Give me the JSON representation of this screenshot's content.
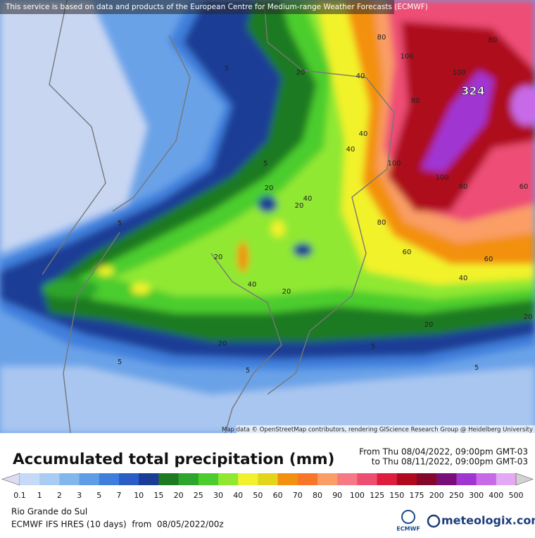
{
  "banner": "This service is based on data and products of the European Centre for Medium-range Weather Forecasts (ECMWF)",
  "attribution": "Map data © OpenStreetMap contributors, rendering GIScience Research Group @ Heidelberg University",
  "map_labels": [
    5,
    20,
    40,
    80,
    80,
    100,
    100,
    324,
    80,
    40,
    40,
    5,
    100,
    100,
    20,
    40,
    80,
    60,
    20,
    5,
    80,
    60,
    20,
    60,
    40,
    20,
    40,
    20,
    20,
    5,
    20,
    5,
    5,
    5
  ],
  "title": "Accumulated total precipitation (mm)",
  "period": [
    "From Thu 08/04/2022, 09:00pm GMT-03",
    "to Thu 08/11/2022, 09:00pm GMT-03"
  ],
  "colorbar": {
    "levels": [
      0.1,
      1,
      2,
      3,
      5,
      7,
      10,
      15,
      20,
      25,
      30,
      40,
      50,
      60,
      70,
      80,
      90,
      100,
      125,
      150,
      175,
      200,
      250,
      300,
      400,
      500
    ],
    "colors": [
      "#dcdcf2",
      "#c4daf6",
      "#a8ccf4",
      "#84b6ee",
      "#5f9de6",
      "#3f7fdc",
      "#2a5ec4",
      "#1b3c96",
      "#1e7a22",
      "#2ea52c",
      "#4ccd2e",
      "#90e832",
      "#f2f22c",
      "#e4d41e",
      "#f3900f",
      "#f7762a",
      "#fa9e66",
      "#f57a84",
      "#ee4d74",
      "#dc1e3c",
      "#ae0a1c",
      "#84082a",
      "#7a0e78",
      "#a035d2",
      "#c86ae8",
      "#e4a8f4",
      "#f5e2fa",
      "#d2d2d2"
    ]
  },
  "region": "Rio Grande do Sul",
  "model": "ECMWF IFS HRES (10 days)  from  08/05/2022/00z",
  "logos": [
    "ECMWF",
    "meteologix.com"
  ]
}
